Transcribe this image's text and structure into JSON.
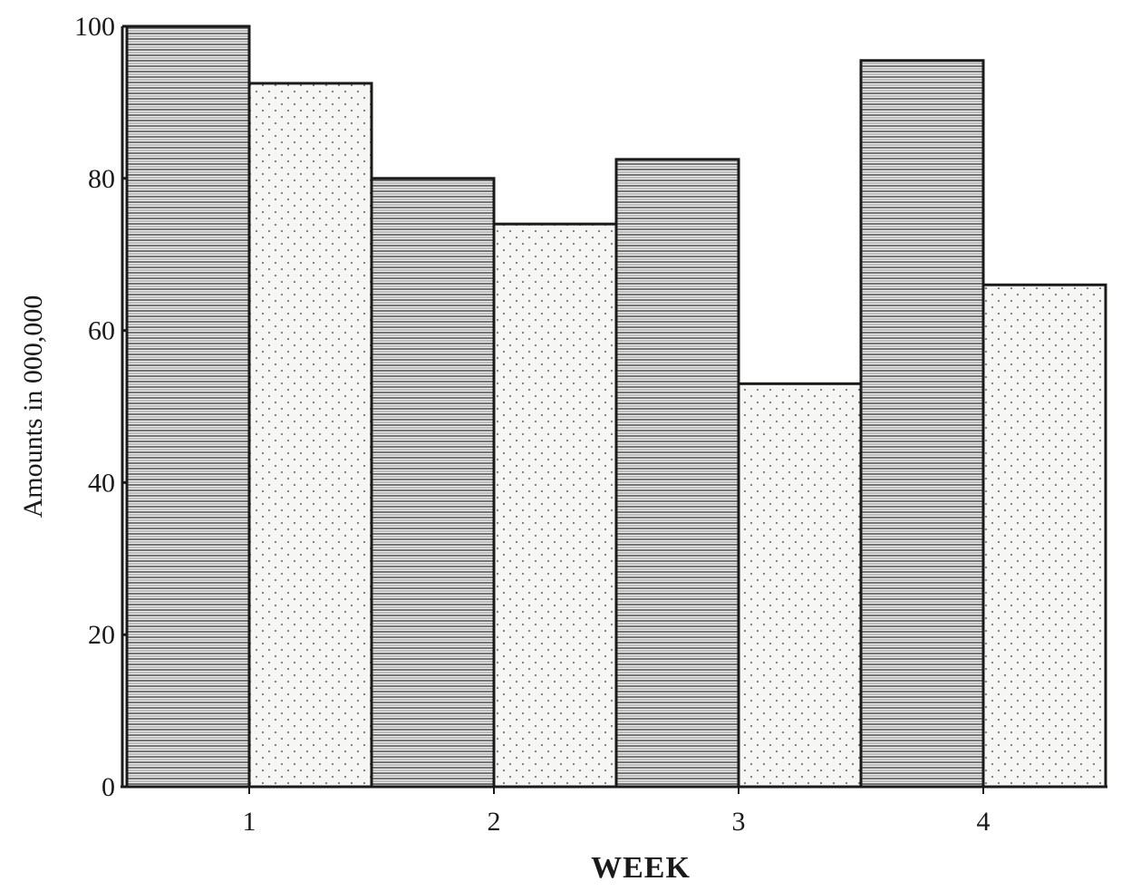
{
  "chart_data": {
    "type": "bar",
    "title": "",
    "xlabel": "WEEK",
    "ylabel": "Amounts in 000,000",
    "categories": [
      "1",
      "2",
      "3",
      "4"
    ],
    "ylim": [
      0,
      100
    ],
    "yticks": [
      0,
      20,
      40,
      60,
      80,
      100
    ],
    "grid": false,
    "legend": "none",
    "series": [
      {
        "pattern": "horizontal-stripes",
        "values": [
          100,
          80,
          82.5,
          95.5
        ]
      },
      {
        "pattern": "dots",
        "values": [
          92.5,
          74,
          53,
          66
        ]
      }
    ]
  }
}
